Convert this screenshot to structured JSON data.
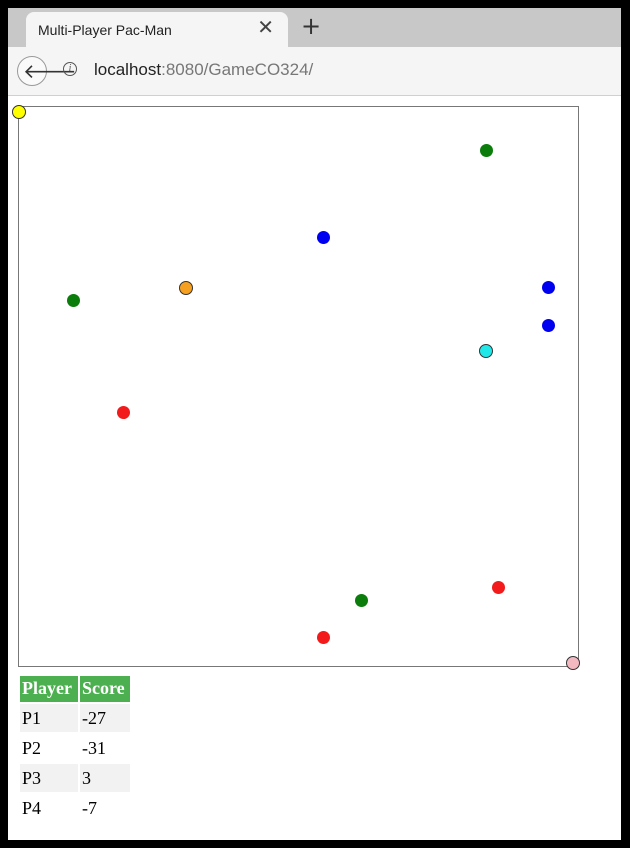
{
  "browser": {
    "tab_title": "Multi-Player Pac-Man",
    "tab_close_icon": "close-icon",
    "new_tab_icon": "plus-icon",
    "back_icon": "back-arrow-icon",
    "info_icon": "info-icon",
    "url_host": "localhost",
    "url_rest": ":8080/GameCO324/"
  },
  "game": {
    "colors": {
      "green": "#0a7d0a",
      "blue": "#0000f0",
      "red": "#f21a1a",
      "yellow": "#ffff00",
      "orange": "#f5a020",
      "cyan": "#20e8e8",
      "pink": "#f4b8c0"
    }
  },
  "scoreboard": {
    "headers": {
      "player": "Player",
      "score": "Score"
    },
    "rows": [
      {
        "player": "P1",
        "score": "-27"
      },
      {
        "player": "P2",
        "score": "-31"
      },
      {
        "player": "P3",
        "score": "3"
      },
      {
        "player": "P4",
        "score": "-7"
      }
    ]
  }
}
